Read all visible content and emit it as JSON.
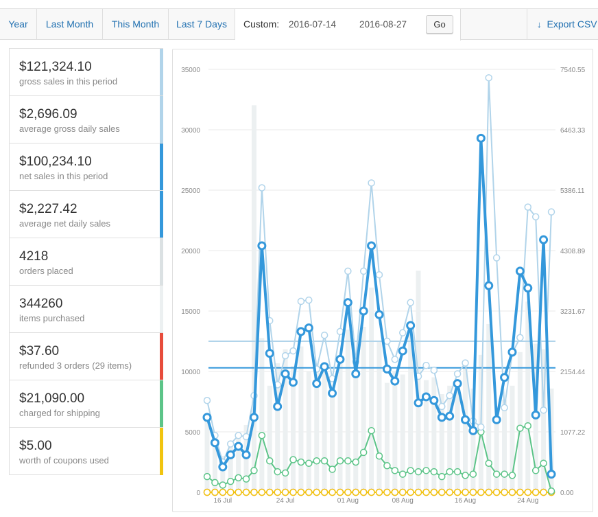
{
  "tabs": {
    "year": "Year",
    "last_month": "Last Month",
    "this_month": "This Month",
    "last_7_days": "Last 7 Days"
  },
  "custom": {
    "label": "Custom:",
    "start_date": "2016-07-14",
    "end_date": "2016-08-27",
    "go_label": "Go"
  },
  "export": {
    "label": "Export CSV",
    "icon": "download-arrow-icon"
  },
  "legend": [
    {
      "value": "$121,324.10",
      "label": "gross sales in this period",
      "color": "#b1d4ea"
    },
    {
      "value": "$2,696.09",
      "label": "average gross daily sales",
      "color": "#b1d4ea"
    },
    {
      "value": "$100,234.10",
      "label": "net sales in this period",
      "color": "#3498db"
    },
    {
      "value": "$2,227.42",
      "label": "average net daily sales",
      "color": "#3498db"
    },
    {
      "value": "4218",
      "label": "orders placed",
      "color": "#dbe1e3"
    },
    {
      "value": "344260",
      "label": "items purchased",
      "color": "#ecf0f1"
    },
    {
      "value": "$37.60",
      "label": "refunded 3 orders (29 items)",
      "color": "#e74c3c"
    },
    {
      "value": "$21,090.00",
      "label": "charged for shipping",
      "color": "#5cc488"
    },
    {
      "value": "$5.00",
      "label": "worth of coupons used",
      "color": "#f1c40f"
    }
  ],
  "chart_data": {
    "type": "line",
    "title": "",
    "x": [
      "2016-07-14",
      "2016-07-15",
      "2016-07-16",
      "2016-07-17",
      "2016-07-18",
      "2016-07-19",
      "2016-07-20",
      "2016-07-21",
      "2016-07-22",
      "2016-07-23",
      "2016-07-24",
      "2016-07-25",
      "2016-07-26",
      "2016-07-27",
      "2016-07-28",
      "2016-07-29",
      "2016-07-30",
      "2016-07-31",
      "2016-08-01",
      "2016-08-02",
      "2016-08-03",
      "2016-08-04",
      "2016-08-05",
      "2016-08-06",
      "2016-08-07",
      "2016-08-08",
      "2016-08-09",
      "2016-08-10",
      "2016-08-11",
      "2016-08-12",
      "2016-08-13",
      "2016-08-14",
      "2016-08-15",
      "2016-08-16",
      "2016-08-17",
      "2016-08-18",
      "2016-08-19",
      "2016-08-20",
      "2016-08-21",
      "2016-08-22",
      "2016-08-23",
      "2016-08-24",
      "2016-08-25",
      "2016-08-26",
      "2016-08-27"
    ],
    "x_tick_labels": [
      {
        "label": "16 Jul",
        "date": "2016-07-16"
      },
      {
        "label": "24 Jul",
        "date": "2016-07-24"
      },
      {
        "label": "01 Aug",
        "date": "2016-08-01"
      },
      {
        "label": "08 Aug",
        "date": "2016-08-08"
      },
      {
        "label": "16 Aug",
        "date": "2016-08-16"
      },
      {
        "label": "24 Aug",
        "date": "2016-08-24"
      }
    ],
    "y_left": {
      "ylim": [
        0,
        35000
      ],
      "ticks": [
        "0",
        "5000",
        "10000",
        "15000",
        "20000",
        "25000",
        "30000",
        "35000"
      ]
    },
    "y_right": {
      "ylim": [
        0,
        7540.55
      ],
      "ticks": [
        "0.00",
        "1077.22",
        "2154.44",
        "3231.67",
        "4308.89",
        "5386.11",
        "6463.33",
        "7540.55"
      ]
    },
    "grid": true,
    "bars": {
      "axis": "right",
      "color": "#ecf0f1",
      "values": [
        1400,
        1050,
        650,
        900,
        950,
        1200,
        6900,
        2750,
        1900,
        2300,
        2550,
        2250,
        2600,
        2150,
        2300,
        2150,
        1850,
        2400,
        2900,
        2050,
        2950,
        3650,
        2700,
        1950,
        2150,
        2100,
        2850,
        3950,
        2000,
        2050,
        1750,
        1900,
        1900,
        2300,
        1850,
        2450,
        3000,
        1350,
        1650,
        1900,
        2500,
        3400,
        2650,
        2550,
        1850
      ]
    },
    "series": [
      {
        "color": "#b1d4ea",
        "axis": "left",
        "values": [
          7600,
          4700,
          2500,
          4000,
          4700,
          4600,
          8000,
          25200,
          14200,
          8900,
          11300,
          11700,
          15800,
          15900,
          10200,
          13000,
          9400,
          13300,
          18300,
          10800,
          18300,
          25600,
          18000,
          12500,
          11000,
          13200,
          15700,
          9600,
          10500,
          10100,
          7100,
          8000,
          9800,
          10700,
          5900,
          5400,
          34300,
          19400,
          7000,
          11500,
          12800,
          23600,
          22800,
          6800,
          23200
        ]
      },
      {
        "color": "#3498db",
        "axis": "left",
        "values": [
          6200,
          4100,
          2100,
          3100,
          3800,
          3100,
          6200,
          20400,
          11500,
          7100,
          9800,
          9100,
          13300,
          13600,
          9000,
          10400,
          8200,
          11000,
          15700,
          9800,
          15000,
          20400,
          14700,
          10200,
          9200,
          11700,
          13800,
          7400,
          7900,
          7600,
          6200,
          6300,
          9000,
          6000,
          5100,
          29300,
          17100,
          6000,
          9500,
          11600,
          18300,
          16900,
          6400,
          20900,
          1500
        ]
      },
      {
        "color": "#5cc488",
        "axis": "left",
        "values": [
          1300,
          800,
          600,
          900,
          1200,
          1100,
          1800,
          4700,
          2600,
          1700,
          1600,
          2700,
          2500,
          2400,
          2600,
          2600,
          1900,
          2600,
          2600,
          2500,
          3300,
          5100,
          3000,
          2200,
          1800,
          1500,
          1800,
          1700,
          1800,
          1700,
          1300,
          1700,
          1700,
          1400,
          1500,
          5000,
          2400,
          1500,
          1500,
          1400,
          5300,
          5500,
          1800,
          2400,
          100
        ]
      },
      {
        "color": "#e74c3c",
        "axis": "left",
        "values": [
          0,
          0,
          0,
          0,
          0,
          0,
          0,
          0,
          0,
          0,
          0,
          0,
          0,
          0,
          0,
          0,
          0,
          0,
          0,
          0,
          0,
          0,
          0,
          0,
          0,
          0,
          0,
          0,
          0,
          0,
          0,
          0,
          0,
          0,
          0,
          0,
          0,
          0,
          0,
          0,
          0,
          0,
          0,
          0,
          0
        ]
      },
      {
        "color": "#f1c40f",
        "axis": "left",
        "values": [
          0,
          0,
          0,
          0,
          0,
          0,
          0,
          0,
          0,
          0,
          0,
          0,
          0,
          0,
          0,
          0,
          0,
          0,
          0,
          0,
          0,
          0,
          0,
          0,
          0,
          0,
          0,
          0,
          0,
          0,
          0,
          0,
          0,
          0,
          0,
          0,
          0,
          0,
          0,
          0,
          0,
          0,
          0,
          0,
          0
        ]
      }
    ],
    "average_lines": [
      {
        "value": 12500,
        "color": "#b1d4ea",
        "axis": "left"
      },
      {
        "value": 10300,
        "color": "#3498db",
        "axis": "left"
      }
    ]
  }
}
